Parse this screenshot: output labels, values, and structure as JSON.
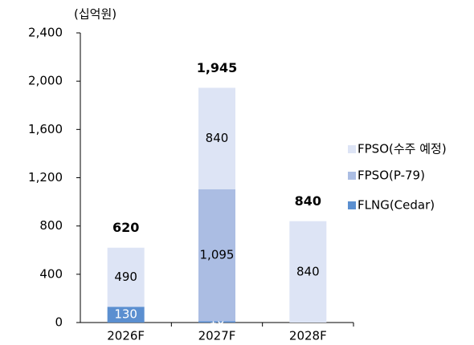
{
  "chart_data": {
    "type": "stacked_bar",
    "y_label": "(십억원)",
    "categories": [
      "2026F",
      "2027F",
      "2028F"
    ],
    "series": [
      {
        "name": "FLNG(Cedar)",
        "color": "#5b8fd0",
        "values": [
          130,
          10,
          null
        ],
        "value_labels": [
          "130",
          "10",
          null
        ]
      },
      {
        "name": "FPSO(P-79)",
        "color": "#abbde3",
        "values": [
          null,
          1095,
          null
        ],
        "value_labels": [
          null,
          "1,095",
          null
        ]
      },
      {
        "name": "FPSO(수주 예정)",
        "color": "#dde4f5",
        "values": [
          490,
          840,
          840
        ],
        "value_labels": [
          "490",
          "840",
          "840"
        ]
      }
    ],
    "totals": {
      "values": [
        620,
        1945,
        840
      ],
      "value_labels": [
        "620",
        "1,945",
        "840"
      ]
    },
    "ylim": [
      0,
      2400
    ],
    "yticks": [
      0,
      400,
      800,
      {
        "value": 1200,
        "label": "1,200"
      },
      {
        "value": 1600,
        "label": "1,600"
      },
      {
        "value": 2000,
        "label": "2,000"
      },
      {
        "value": 2400,
        "label": "2,400"
      }
    ],
    "legend": "right"
  }
}
